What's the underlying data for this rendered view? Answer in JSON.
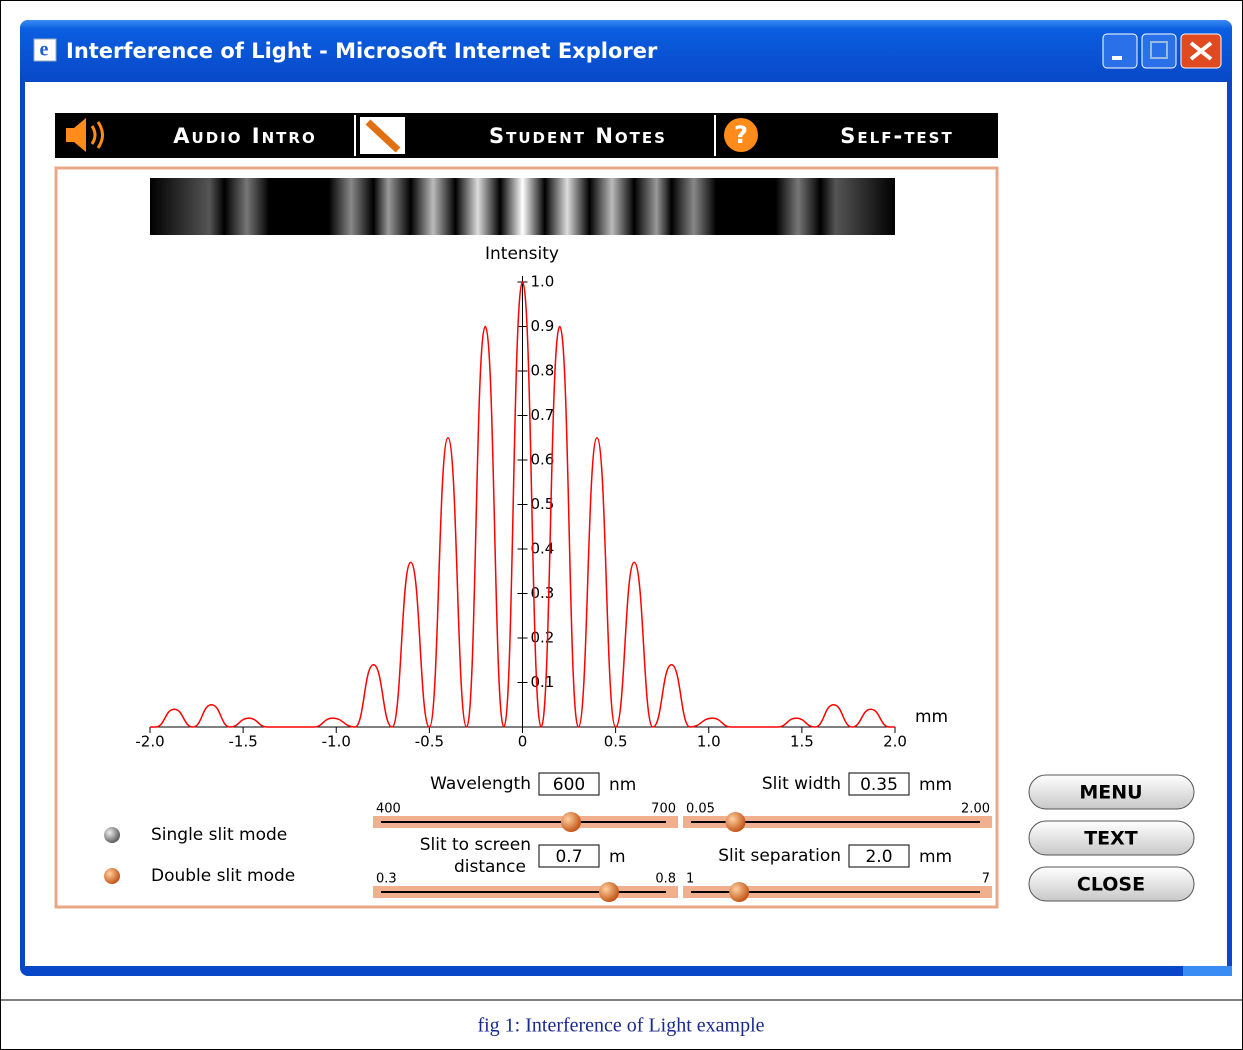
{
  "window": {
    "title": "Interference of Light - Microsoft Internet Explorer"
  },
  "toolbar": {
    "items": [
      "Audio Intro",
      "Student Notes",
      "Self-test"
    ]
  },
  "plot": {
    "type": "line",
    "y_label": "Intensity",
    "x_unit": "mm",
    "color": "#ff0000",
    "x": [
      -2.0,
      -1.97,
      -1.87,
      -1.77,
      -1.67,
      -1.57,
      -1.47,
      -1.37,
      -1.12,
      -1.02,
      -0.9,
      -0.8,
      -0.7,
      -0.6,
      -0.5,
      -0.4,
      -0.3,
      -0.2,
      -0.1,
      0,
      0.1,
      0.2,
      0.3,
      0.4,
      0.5,
      0.6,
      0.7,
      0.8,
      0.9,
      1.02,
      1.12,
      1.37,
      1.47,
      1.57,
      1.67,
      1.77,
      1.87,
      1.97,
      2.0
    ],
    "values": [
      0,
      0,
      0.04,
      0,
      0.05,
      0,
      0.02,
      0,
      0,
      0.02,
      0,
      0.14,
      0,
      0.37,
      0,
      0.65,
      0,
      0.9,
      0,
      1.0,
      0,
      0.9,
      0,
      0.65,
      0,
      0.37,
      0,
      0.14,
      0,
      0.02,
      0,
      0,
      0.02,
      0,
      0.05,
      0,
      0.04,
      0,
      0
    ],
    "xlim": [
      -2.0,
      2.0
    ],
    "ylim": [
      0,
      1.0
    ],
    "xticks": [
      {
        "value": -2,
        "label": "-2.0"
      },
      {
        "value": -1.5,
        "label": "-1.5"
      },
      {
        "value": -1,
        "label": "-1.0"
      },
      -0.5,
      0,
      0.5,
      {
        "value": 1,
        "label": "1.0"
      },
      {
        "value": 1.5,
        "label": "1.5"
      },
      {
        "value": 2,
        "label": "2.0"
      }
    ],
    "yticks": [
      0.1,
      0.2,
      0.3,
      0.4,
      0.5,
      0.6,
      0.7,
      0.8,
      0.9,
      {
        "value": 1,
        "label": "1.0"
      }
    ]
  },
  "sliders": [
    {
      "label": "Wavelength",
      "value": "600",
      "unit": "nm",
      "min": "400",
      "max": "700"
    },
    {
      "label": "Slit width",
      "value": "0.35",
      "unit": "mm",
      "min": "0.05",
      "max": "2.00"
    },
    {
      "label": "Slit to screen distance",
      "value": "0.7",
      "unit": "m",
      "min": "0.3",
      "max": "0.8"
    },
    {
      "label": "Slit separation",
      "value": "2.0",
      "unit": "mm",
      "min": "1",
      "max": "7"
    }
  ],
  "modes": [
    "Single slit mode",
    "Double slit mode"
  ],
  "buttons": [
    "MENU",
    "TEXT",
    "CLOSE"
  ],
  "caption": "fig 1: Interference of Light example"
}
